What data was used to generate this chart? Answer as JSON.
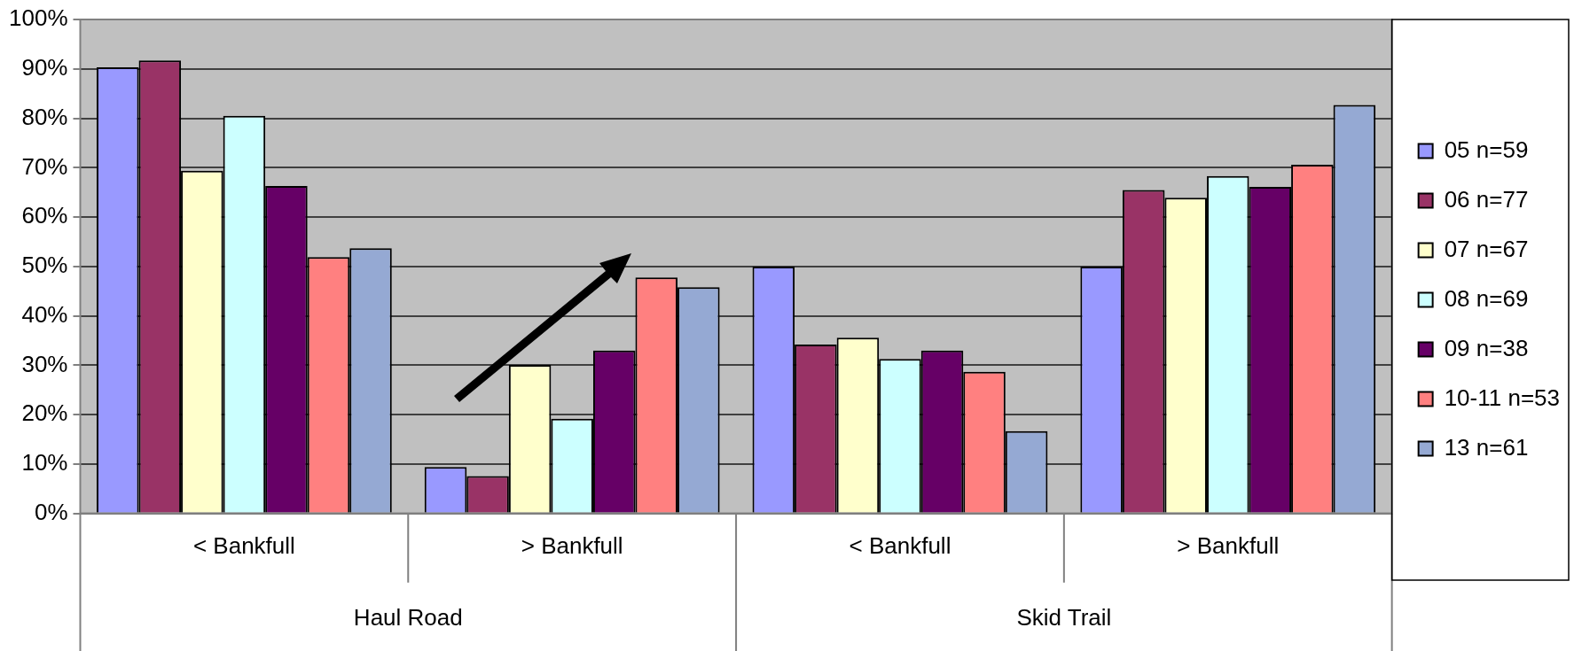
{
  "chart_data": {
    "type": "bar",
    "categories": [
      "< Bankfull",
      "> Bankfull",
      "< Bankfull",
      "> Bankfull"
    ],
    "annotations": [
      "Haul Road",
      "Skid Trail"
    ],
    "series": [
      {
        "name": "05 n=59",
        "color": "#9999ff",
        "values": [
          90.3,
          9.4,
          50,
          50
        ]
      },
      {
        "name": "06 n=77",
        "color": "#993366",
        "values": [
          91.7,
          7.6,
          34.2,
          65.5
        ]
      },
      {
        "name": "07 n=67",
        "color": "#ffffcc",
        "values": [
          69.4,
          30.1,
          35.6,
          63.9
        ]
      },
      {
        "name": "08 n=69",
        "color": "#ccffff",
        "values": [
          80.5,
          19.2,
          31.3,
          68.3
        ]
      },
      {
        "name": "09 n=38",
        "color": "#660066",
        "values": [
          66.3,
          33.0,
          33.0,
          66.1
        ]
      },
      {
        "name": "10-11 n=53",
        "color": "#ff8080",
        "values": [
          51.9,
          47.8,
          28.7,
          70.6
        ]
      },
      {
        "name": "13 n=61",
        "color": "#95a9d3",
        "values": [
          53.7,
          45.8,
          16.7,
          82.7
        ]
      }
    ],
    "ylim": [
      0,
      100
    ],
    "yticks": [
      {
        "value": 0,
        "label": "0%"
      },
      {
        "value": 10,
        "label": "10%"
      },
      {
        "value": 20,
        "label": "20%"
      },
      {
        "value": 30,
        "label": "30%"
      },
      {
        "value": 40,
        "label": "40%"
      },
      {
        "value": 50,
        "label": "50%"
      },
      {
        "value": 60,
        "label": "60%"
      },
      {
        "value": 70,
        "label": "70%"
      },
      {
        "value": 80,
        "label": "80%"
      },
      {
        "value": 90,
        "label": "90%"
      },
      {
        "value": 100,
        "label": "100%"
      }
    ],
    "grid": "y",
    "legend": "right"
  }
}
